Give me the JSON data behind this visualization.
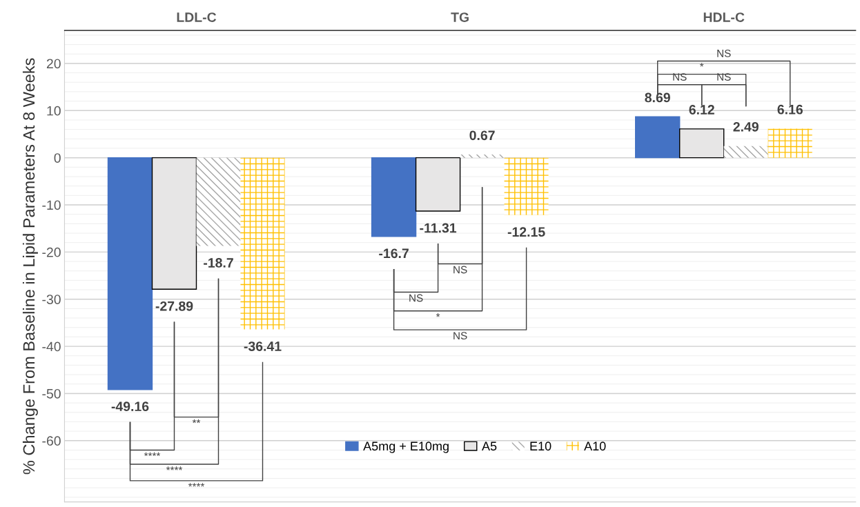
{
  "chart_data": {
    "type": "bar",
    "categories": [
      "LDL-C",
      "TG",
      "HDL-C"
    ],
    "ylabel": "% Change From Baseline in Lipid Parameters At 8 Weeks",
    "series": [
      {
        "name": "A5mg + E10mg",
        "color": "#4472c4",
        "values": [
          -49.16,
          -16.7,
          8.69
        ]
      },
      {
        "name": "A5",
        "color": "#e7e6e6",
        "values": [
          -27.89,
          -11.31,
          6.12
        ]
      },
      {
        "name": "E10",
        "color": "#a5a5a5",
        "values": [
          -18.7,
          0.67,
          2.49
        ]
      },
      {
        "name": "A10",
        "color": "#ffc000",
        "values": [
          -36.41,
          -12.15,
          6.16
        ]
      }
    ],
    "ylim": [
      -73,
      27
    ],
    "yticks": [
      -60,
      -50,
      -40,
      -30,
      -20,
      -10,
      0,
      10,
      20
    ],
    "grid": "y",
    "legend": "bottom",
    "data_labels": true,
    "annotations": [
      "**",
      "****",
      "****",
      "****",
      "NS",
      "NS",
      "*",
      "NS",
      "NS",
      "NS",
      "*",
      "NS"
    ]
  }
}
